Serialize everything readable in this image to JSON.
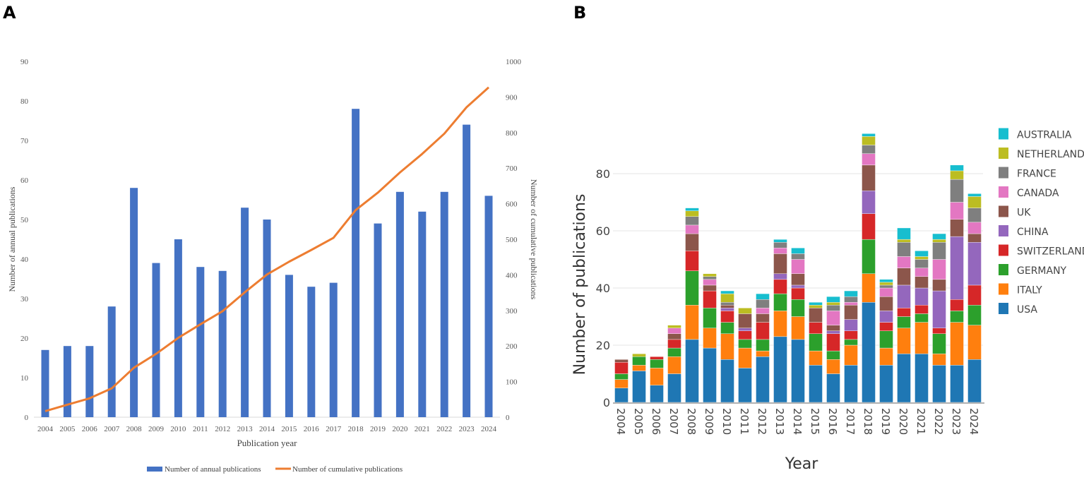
{
  "chart_data": [
    {
      "panel_label": "A",
      "type": "bar+line",
      "categories": [
        "2004",
        "2005",
        "2006",
        "2007",
        "2008",
        "2009",
        "2010",
        "2011",
        "2012",
        "2013",
        "2014",
        "2015",
        "2016",
        "2017",
        "2018",
        "2019",
        "2020",
        "2021",
        "2022",
        "2023",
        "2024"
      ],
      "series": [
        {
          "name": "Number of annual publications",
          "type": "bar",
          "axis": "left",
          "color": "#4472c4",
          "values": [
            17,
            18,
            18,
            28,
            58,
            39,
            45,
            38,
            37,
            53,
            50,
            36,
            33,
            34,
            78,
            49,
            57,
            52,
            57,
            74,
            56
          ]
        },
        {
          "name": "Number of cumulative publications",
          "type": "line",
          "axis": "right",
          "color": "#ed7d31",
          "values": [
            17,
            35,
            53,
            81,
            139,
            178,
            223,
            261,
            298,
            351,
            401,
            437,
            470,
            504,
            582,
            631,
            688,
            740,
            797,
            871,
            927
          ]
        }
      ],
      "xlabel": "Publication year",
      "ylabel": "Number of annual publications",
      "y2label": "Number of cumulative publications",
      "ylim": [
        0,
        90
      ],
      "yticks": [
        0,
        10,
        20,
        30,
        40,
        50,
        60,
        70,
        80,
        90
      ],
      "y2lim": [
        0,
        1000
      ],
      "y2ticks": [
        0,
        100,
        200,
        300,
        400,
        500,
        600,
        700,
        800,
        900,
        1000
      ],
      "legend": "bottom",
      "grid": false
    },
    {
      "panel_label": "B",
      "type": "stacked-bar",
      "categories": [
        "2004",
        "2005",
        "2006",
        "2007",
        "2008",
        "2009",
        "2010",
        "2011",
        "2012",
        "2013",
        "2014",
        "2015",
        "2016",
        "2017",
        "2018",
        "2019",
        "2020",
        "2021",
        "2022",
        "2023",
        "2024"
      ],
      "series": [
        {
          "name": "USA",
          "color": "#1f77b4",
          "values": [
            5,
            11,
            6,
            10,
            22,
            19,
            15,
            12,
            16,
            23,
            22,
            13,
            10,
            13,
            35,
            13,
            17,
            17,
            13,
            13,
            15
          ]
        },
        {
          "name": "ITALY",
          "color": "#ff7f0e",
          "values": [
            3,
            2,
            6,
            6,
            12,
            7,
            9,
            7,
            2,
            9,
            8,
            5,
            5,
            7,
            10,
            6,
            9,
            11,
            4,
            15,
            12
          ]
        },
        {
          "name": "GERMANY",
          "color": "#2ca02c",
          "values": [
            2,
            3,
            3,
            3,
            12,
            7,
            4,
            3,
            4,
            6,
            6,
            6,
            3,
            2,
            12,
            6,
            4,
            3,
            7,
            4,
            7
          ]
        },
        {
          "name": "SWITZERLAND",
          "color": "#d62728",
          "values": [
            4,
            0,
            1,
            3,
            7,
            6,
            4,
            3,
            6,
            5,
            4,
            4,
            6,
            3,
            9,
            3,
            3,
            3,
            2,
            4,
            7
          ]
        },
        {
          "name": "CHINA",
          "color": "#9467bd",
          "values": [
            0,
            0,
            0,
            0,
            0,
            0,
            1,
            1,
            0,
            2,
            1,
            0,
            1,
            4,
            8,
            4,
            8,
            6,
            13,
            22,
            15
          ]
        },
        {
          "name": "UK",
          "color": "#8c564b",
          "values": [
            1,
            0,
            0,
            2,
            6,
            2,
            1,
            5,
            3,
            7,
            4,
            5,
            2,
            5,
            9,
            5,
            6,
            4,
            4,
            6,
            3
          ]
        },
        {
          "name": "CANADA",
          "color": "#e377c2",
          "values": [
            0,
            0,
            0,
            2,
            3,
            2,
            0,
            0,
            2,
            2,
            5,
            0,
            5,
            1,
            4,
            3,
            4,
            3,
            7,
            6,
            4
          ]
        },
        {
          "name": "FRANCE",
          "color": "#7f7f7f",
          "values": [
            0,
            0,
            0,
            0,
            3,
            1,
            1,
            0,
            3,
            2,
            2,
            0,
            2,
            2,
            3,
            1,
            5,
            3,
            6,
            8,
            5
          ]
        },
        {
          "name": "NETHERLANDS",
          "color": "#bcbd22",
          "values": [
            0,
            1,
            0,
            1,
            2,
            1,
            3,
            2,
            0,
            0,
            0,
            1,
            1,
            0,
            3,
            1,
            1,
            1,
            1,
            3,
            4
          ]
        },
        {
          "name": "AUSTRALIA",
          "color": "#17becf",
          "values": [
            0,
            0,
            0,
            0,
            1,
            0,
            1,
            0,
            2,
            1,
            2,
            1,
            2,
            2,
            1,
            1,
            4,
            2,
            2,
            2,
            1
          ]
        }
      ],
      "xlabel": "Year",
      "ylabel": "Number of publications",
      "ylim": [
        0,
        95
      ],
      "yticks": [
        0,
        20,
        40,
        60,
        80
      ],
      "legend": "right",
      "grid": true
    }
  ]
}
